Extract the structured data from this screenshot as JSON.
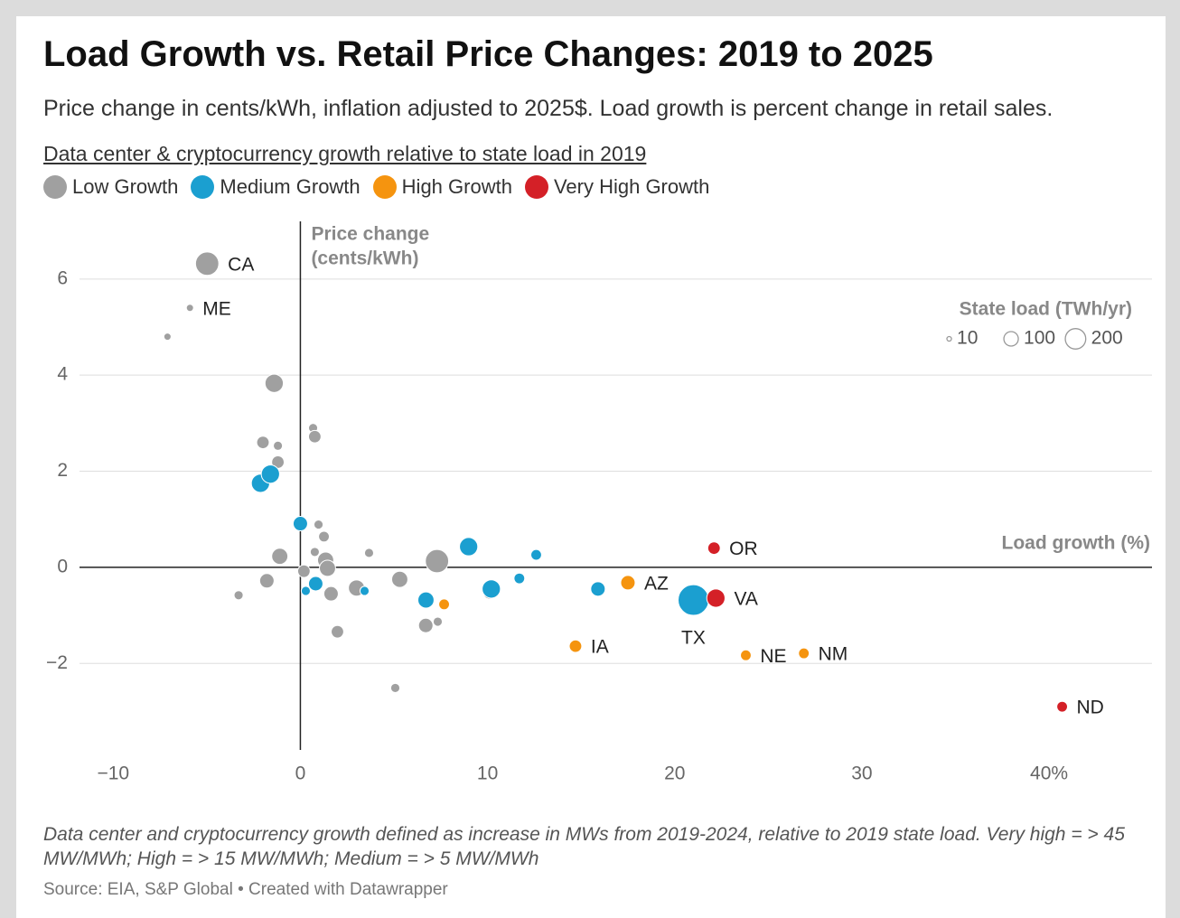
{
  "chart_data": {
    "type": "scatter",
    "title": "Load Growth vs. Retail Price Changes: 2019 to 2025",
    "subtitle": "Price change in cents/kWh, inflation adjusted to 2025$. Load growth is percent change in retail sales.",
    "legend_title": "Data center & cryptocurrency growth relative to state load in 2019",
    "x_label": "Load growth (%)",
    "y_label": [
      "Price change",
      "(cents/kWh)"
    ],
    "xlim": [
      -11.8,
      45.5
    ],
    "ylim": [
      -3.8,
      7.2
    ],
    "xticks": [
      {
        "value": -10,
        "label": "−10"
      },
      0,
      10,
      20,
      30,
      {
        "value": 40,
        "label": "40%"
      }
    ],
    "yticks": [
      {
        "value": -2,
        "label": "−2"
      },
      0,
      2,
      4,
      6
    ],
    "grid": true,
    "size_legend": {
      "title": "State load (TWh/yr)",
      "values": [
        10,
        100,
        200
      ]
    },
    "series": [
      {
        "name": "Low Growth",
        "color": "#a0a0a0",
        "x": [
          -4.98,
          -5.9,
          -7.1,
          -1.4,
          -2.0,
          -1.2,
          -1.2,
          0.68,
          0.77,
          0.97,
          1.26,
          -1.1,
          0.77,
          1.35,
          1.45,
          0.19,
          -1.79,
          -3.3,
          1.64,
          1.98,
          3.67,
          3.0,
          5.31,
          7.3,
          6.7,
          7.34,
          5.07,
          10.1
        ],
        "values": [
          6.32,
          5.4,
          4.8,
          3.83,
          2.6,
          2.53,
          2.19,
          2.9,
          2.72,
          0.89,
          0.64,
          0.23,
          0.32,
          0.15,
          -0.02,
          -0.08,
          -0.28,
          -0.58,
          -0.55,
          -1.34,
          0.3,
          -0.43,
          -0.25,
          0.13,
          -1.21,
          -1.13,
          -2.51,
          -0.53
        ],
        "sizes": [
          260,
          25,
          25,
          160,
          75,
          40,
          75,
          40,
          75,
          40,
          55,
          125,
          40,
          125,
          125,
          75,
          100,
          40,
          100,
          75,
          40,
          125,
          125,
          260,
          100,
          40,
          40,
          75
        ],
        "labels": [
          "CA",
          "ME",
          null,
          null,
          null,
          null,
          null,
          null,
          null,
          null,
          null,
          null,
          null,
          null,
          null,
          null,
          null,
          null,
          null,
          null,
          null,
          null,
          null,
          null,
          null,
          null,
          null,
          null
        ]
      },
      {
        "name": "Medium Growth",
        "color": "#1b9fd0",
        "x": [
          -2.13,
          -1.6,
          0,
          0.82,
          0.29,
          3.43,
          6.71,
          8.99,
          10.2,
          11.7,
          12.6,
          15.9,
          21.0
        ],
        "values": [
          1.75,
          1.94,
          0.91,
          -0.34,
          -0.49,
          -0.49,
          -0.68,
          0.43,
          -0.45,
          -0.23,
          0.26,
          -0.45,
          -0.68
        ],
        "sizes": [
          160,
          160,
          100,
          100,
          40,
          40,
          125,
          160,
          160,
          55,
          55,
          100,
          450
        ],
        "labels": [
          null,
          null,
          null,
          null,
          null,
          null,
          null,
          null,
          null,
          null,
          null,
          null,
          "TX"
        ]
      },
      {
        "name": "High Growth",
        "color": "#f5940f",
        "x": [
          17.5,
          7.68,
          14.7,
          23.8,
          26.9
        ],
        "values": [
          -0.32,
          -0.77,
          -1.64,
          -1.83,
          -1.79
        ],
        "sizes": [
          100,
          55,
          75,
          55,
          55
        ],
        "labels": [
          "AZ",
          null,
          "IA",
          "NE",
          "NM"
        ]
      },
      {
        "name": "Very High Growth",
        "color": "#d42027",
        "x": [
          22.1,
          22.2,
          40.7
        ],
        "values": [
          0.4,
          -0.64,
          -2.9
        ],
        "sizes": [
          75,
          160,
          55
        ],
        "labels": [
          "OR",
          "VA",
          "ND"
        ]
      }
    ],
    "note": "Data center and cryptocurrency growth defined as increase in MWs from 2019-2024, relative to 2019 state load. Very high = > 45 MW/MWh; High = > 15 MW/MWh; Medium = > 5 MW/MWh",
    "source": "Source: EIA, S&P Global • Created with Datawrapper"
  }
}
